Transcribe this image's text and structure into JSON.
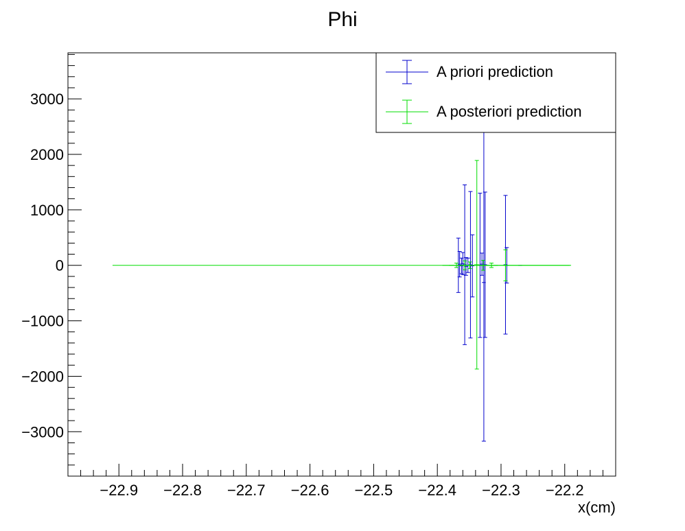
{
  "chart_data": {
    "type": "scatter",
    "title": "Phi",
    "xlabel": "x(cm)",
    "ylabel": "",
    "xlim": [
      -22.98,
      -22.12
    ],
    "ylim": [
      -3800,
      3830
    ],
    "x_ticks": [
      -22.9,
      -22.8,
      -22.7,
      -22.6,
      -22.5,
      -22.4,
      -22.3,
      -22.2
    ],
    "x_tick_labels": [
      "−22.9",
      "−22.8",
      "−22.7",
      "−22.6",
      "−22.5",
      "−22.4",
      "−22.3",
      "−22.2"
    ],
    "y_ticks": [
      -3000,
      -2000,
      -1000,
      0,
      1000,
      2000,
      3000
    ],
    "y_tick_labels": [
      "−3000",
      "−2000",
      "−1000",
      "0",
      "1000",
      "2000",
      "3000"
    ],
    "grid": false,
    "legend_position": "top-right",
    "series": [
      {
        "name": "A priori prediction",
        "color": "#0000cc",
        "points": [
          {
            "x": -22.367,
            "y": 0,
            "xerr": 0.003,
            "yerr": 490
          },
          {
            "x": -22.365,
            "y": 20,
            "xerr": 0.003,
            "yerr": 230
          },
          {
            "x": -22.362,
            "y": -10,
            "xerr": 0.003,
            "yerr": 140
          },
          {
            "x": -22.36,
            "y": 30,
            "xerr": 0.003,
            "yerr": 200
          },
          {
            "x": -22.357,
            "y": 10,
            "xerr": 0.003,
            "yerr": 1440
          },
          {
            "x": -22.355,
            "y": -20,
            "xerr": 0.003,
            "yerr": 160
          },
          {
            "x": -22.352,
            "y": 0,
            "xerr": 0.003,
            "yerr": 130
          },
          {
            "x": -22.348,
            "y": 10,
            "xerr": 0.003,
            "yerr": 1320
          },
          {
            "x": -22.345,
            "y": -10,
            "xerr": 0.003,
            "yerr": 560
          },
          {
            "x": -22.333,
            "y": 0,
            "xerr": 0.003,
            "yerr": 1300
          },
          {
            "x": -22.33,
            "y": 20,
            "xerr": 0.003,
            "yerr": 200
          },
          {
            "x": -22.327,
            "y": -310,
            "xerr": 0.003,
            "yerr": 2860
          },
          {
            "x": -22.325,
            "y": 10,
            "xerr": 0.003,
            "yerr": 1310
          },
          {
            "x": -22.293,
            "y": 10,
            "xerr": 0.003,
            "yerr": 1250
          },
          {
            "x": -22.291,
            "y": 0,
            "xerr": 0.003,
            "yerr": 320
          },
          {
            "x": -22.27,
            "y": 0,
            "xerr": 0.003,
            "yerr": 0
          }
        ]
      },
      {
        "name": "A posteriori prediction",
        "color": "#00dd00",
        "points": [
          {
            "x": -22.55,
            "y": 0,
            "xerr": 0.36,
            "yerr": 0
          },
          {
            "x": -22.37,
            "y": 0,
            "xerr": 0.012,
            "yerr": 40
          },
          {
            "x": -22.357,
            "y": 0,
            "xerr": 0.006,
            "yerr": 80
          },
          {
            "x": -22.349,
            "y": 0,
            "xerr": 0.006,
            "yerr": 60
          },
          {
            "x": -22.338,
            "y": 10,
            "xerr": 0.004,
            "yerr": 1880
          },
          {
            "x": -22.328,
            "y": 0,
            "xerr": 0.006,
            "yerr": 90
          },
          {
            "x": -22.315,
            "y": 0,
            "xerr": 0.01,
            "yerr": 40
          },
          {
            "x": -22.293,
            "y": 0,
            "xerr": 0.004,
            "yerr": 280
          },
          {
            "x": -22.292,
            "y": 0,
            "xerr": 0.1,
            "yerr": 0
          }
        ]
      }
    ]
  }
}
